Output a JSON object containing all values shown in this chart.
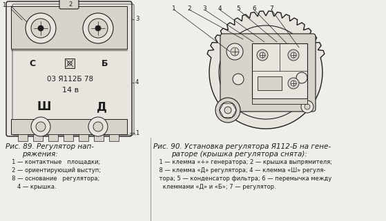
{
  "bg_color": "#f0eeea",
  "fig_width": 5.59,
  "fig_height": 3.21,
  "dpi": 100,
  "caption_left_line1": "Рис. 89. Регулятор нап-",
  "caption_left_line2": "ряжения:",
  "caption_left_items": [
    "     1 — контактные   площадки;",
    "     2 — ориентирующий выступ;",
    "     8 — основание   регулятора;",
    "        4 — крышка."
  ],
  "caption_right_line1": "Рис. 90. Установка регулятора Я112-Б на гене-",
  "caption_right_line2": "раторе (крышка регулятора снята):",
  "caption_right_items": [
    "    1 — клемма «+» генератора; 2 — крышка выпрямителя;",
    "    8 — клемма «Д» регулятора; 4 — клемма «Ш» регуля-",
    "    тора; 5 — конденсатор фильтра; 6 — перемычка между",
    "      клеммами «Д» и «Б»; 7 — регулятор."
  ]
}
